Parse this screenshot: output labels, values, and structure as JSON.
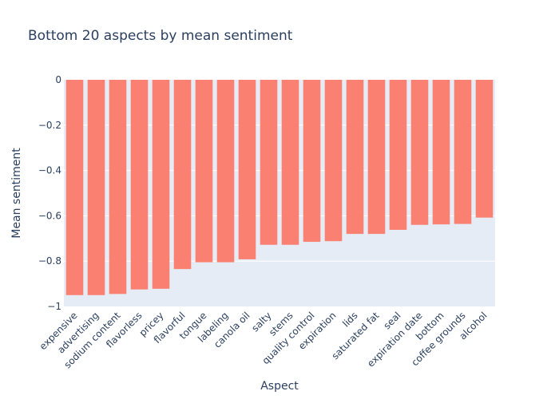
{
  "chart_data": {
    "type": "bar",
    "title": "Bottom 20 aspects by mean sentiment",
    "xlabel": "Aspect",
    "ylabel": "Mean sentiment",
    "ylim": [
      -1,
      0
    ],
    "yticks": [
      0,
      -0.2,
      -0.4,
      -0.6,
      -0.8,
      -1
    ],
    "ytick_labels": [
      "0",
      "−0.2",
      "−0.4",
      "−0.6",
      "−0.8",
      "−1"
    ],
    "grid": true,
    "bar_color": "#FA8072",
    "plot_bg": "#E5ECF6",
    "categories": [
      "expensive",
      "advertising",
      "sodium content",
      "flavorless",
      "pricey",
      "flavorful",
      "tongue",
      "labeling",
      "canola oil",
      "salty",
      "stems",
      "quality control",
      "expiration",
      "lids",
      "saturated fat",
      "seal",
      "expiration date",
      "bottom",
      "coffee grounds",
      "alcohol"
    ],
    "values": [
      -0.95,
      -0.95,
      -0.945,
      -0.925,
      -0.922,
      -0.835,
      -0.805,
      -0.805,
      -0.792,
      -0.728,
      -0.728,
      -0.715,
      -0.712,
      -0.68,
      -0.68,
      -0.662,
      -0.64,
      -0.638,
      -0.636,
      -0.608
    ]
  }
}
